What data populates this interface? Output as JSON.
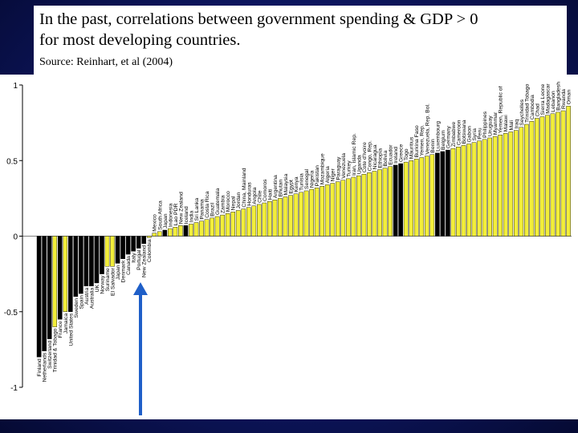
{
  "header": {
    "title_line1": "In the past, correlations between government spending & GDP  > 0",
    "title_line2": "for most developing countries.",
    "source": "Source: Reinhart, et al (2004)"
  },
  "annotation": {
    "arrow_color": "#1f5fc8",
    "points_to": "Colombia"
  },
  "chart_data": {
    "type": "bar",
    "ylim": [
      -1,
      1
    ],
    "yticks": [
      1,
      0.5,
      0,
      -0.5,
      -1
    ],
    "ytick_labels": [
      "1",
      "0.5",
      "0",
      "-0.5",
      "-1"
    ],
    "colors": {
      "industrial": "#000000",
      "developing": "#f2ee3a"
    },
    "bars": [
      {
        "label": "Finland",
        "value": -0.8,
        "group": "industrial"
      },
      {
        "label": "Netherlands",
        "value": -0.76,
        "group": "industrial"
      },
      {
        "label": "Switzerland",
        "value": -0.68,
        "group": "industrial"
      },
      {
        "label": "Trinidad & Tobago",
        "value": -0.6,
        "group": "developing"
      },
      {
        "label": "France",
        "value": -0.55,
        "group": "industrial"
      },
      {
        "label": "Jamaica",
        "value": -0.5,
        "group": "developing"
      },
      {
        "label": "United States",
        "value": -0.5,
        "group": "industrial"
      },
      {
        "label": "Sweden",
        "value": -0.4,
        "group": "industrial"
      },
      {
        "label": "Spain",
        "value": -0.38,
        "group": "industrial"
      },
      {
        "label": "Austria",
        "value": -0.33,
        "group": "industrial"
      },
      {
        "label": "Australia",
        "value": -0.33,
        "group": "industrial"
      },
      {
        "label": "UK",
        "value": -0.31,
        "group": "industrial"
      },
      {
        "label": "Norway",
        "value": -0.25,
        "group": "industrial"
      },
      {
        "label": "Suriname",
        "value": -0.2,
        "group": "developing"
      },
      {
        "label": "El Salvador",
        "value": -0.2,
        "group": "developing"
      },
      {
        "label": "Japan",
        "value": -0.18,
        "group": "industrial"
      },
      {
        "label": "Denmark",
        "value": -0.15,
        "group": "industrial"
      },
      {
        "label": "Canada",
        "value": -0.12,
        "group": "industrial"
      },
      {
        "label": "Italy",
        "value": -0.1,
        "group": "industrial"
      },
      {
        "label": "Portugal",
        "value": -0.08,
        "group": "industrial"
      },
      {
        "label": "New Zealand",
        "value": -0.05,
        "group": "industrial"
      },
      {
        "label": "Colombia",
        "value": -0.01,
        "group": "developing"
      },
      {
        "label": "Mexico",
        "value": 0.02,
        "group": "developing"
      },
      {
        "label": "South Africa",
        "value": 0.03,
        "group": "developing"
      },
      {
        "label": "Japan",
        "value": 0.04,
        "group": "industrial"
      },
      {
        "label": "Indonesia",
        "value": 0.05,
        "group": "developing"
      },
      {
        "label": "Lao PDR",
        "value": 0.06,
        "group": "developing"
      },
      {
        "label": "New Zealand",
        "value": 0.07,
        "group": "developing"
      },
      {
        "label": "Iceland",
        "value": 0.07,
        "group": "industrial"
      },
      {
        "label": "India",
        "value": 0.08,
        "group": "developing"
      },
      {
        "label": "Sri Lanka",
        "value": 0.09,
        "group": "developing"
      },
      {
        "label": "Panama",
        "value": 0.1,
        "group": "developing"
      },
      {
        "label": "Costa Rica",
        "value": 0.11,
        "group": "developing"
      },
      {
        "label": "Brazil",
        "value": 0.12,
        "group": "developing"
      },
      {
        "label": "Guatemala",
        "value": 0.13,
        "group": "developing"
      },
      {
        "label": "Zambia",
        "value": 0.14,
        "group": "developing"
      },
      {
        "label": "Morocco",
        "value": 0.15,
        "group": "developing"
      },
      {
        "label": "Nepal",
        "value": 0.16,
        "group": "developing"
      },
      {
        "label": "Jordan",
        "value": 0.17,
        "group": "developing"
      },
      {
        "label": "China, Mainland",
        "value": 0.18,
        "group": "developing"
      },
      {
        "label": "Honduras",
        "value": 0.19,
        "group": "developing"
      },
      {
        "label": "Angola",
        "value": 0.2,
        "group": "developing"
      },
      {
        "label": "Chile",
        "value": 0.21,
        "group": "developing"
      },
      {
        "label": "Comoros",
        "value": 0.22,
        "group": "developing"
      },
      {
        "label": "Haiti",
        "value": 0.23,
        "group": "developing"
      },
      {
        "label": "Argentina",
        "value": 0.24,
        "group": "developing"
      },
      {
        "label": "Bhutan",
        "value": 0.25,
        "group": "developing"
      },
      {
        "label": "Malaysia",
        "value": 0.26,
        "group": "developing"
      },
      {
        "label": "Egypt",
        "value": 0.27,
        "group": "developing"
      },
      {
        "label": "Kenya",
        "value": 0.28,
        "group": "developing"
      },
      {
        "label": "Tunisia",
        "value": 0.29,
        "group": "developing"
      },
      {
        "label": "Senegal",
        "value": 0.3,
        "group": "developing"
      },
      {
        "label": "Nigeria",
        "value": 0.31,
        "group": "developing"
      },
      {
        "label": "Pakistan",
        "value": 0.32,
        "group": "developing"
      },
      {
        "label": "Mozambique",
        "value": 0.33,
        "group": "developing"
      },
      {
        "label": "Algeria",
        "value": 0.34,
        "group": "developing"
      },
      {
        "label": "Niger",
        "value": 0.35,
        "group": "developing"
      },
      {
        "label": "Paraguay",
        "value": 0.36,
        "group": "developing"
      },
      {
        "label": "Venezuela",
        "value": 0.37,
        "group": "developing"
      },
      {
        "label": "Turkey",
        "value": 0.38,
        "group": "developing"
      },
      {
        "label": "Iran, Islamic Rep.",
        "value": 0.39,
        "group": "developing"
      },
      {
        "label": "Uganda",
        "value": 0.4,
        "group": "developing"
      },
      {
        "label": "Cote d'Ivoire",
        "value": 0.41,
        "group": "developing"
      },
      {
        "label": "Congo, Rep.",
        "value": 0.42,
        "group": "developing"
      },
      {
        "label": "Nicaragua",
        "value": 0.43,
        "group": "developing"
      },
      {
        "label": "Ethiopia",
        "value": 0.44,
        "group": "developing"
      },
      {
        "label": "Bolivia",
        "value": 0.45,
        "group": "developing"
      },
      {
        "label": "Ecuador",
        "value": 0.46,
        "group": "developing"
      },
      {
        "label": "Ireland",
        "value": 0.47,
        "group": "industrial"
      },
      {
        "label": "Greece",
        "value": 0.48,
        "group": "industrial"
      },
      {
        "label": "Togo",
        "value": 0.49,
        "group": "developing"
      },
      {
        "label": "Mauritius",
        "value": 0.5,
        "group": "developing"
      },
      {
        "label": "Burkina Faso",
        "value": 0.51,
        "group": "developing"
      },
      {
        "label": "Yemen, Rep.",
        "value": 0.52,
        "group": "developing"
      },
      {
        "label": "Venezuela, Rep. Bol.",
        "value": 0.53,
        "group": "developing"
      },
      {
        "label": "Benin",
        "value": 0.54,
        "group": "developing"
      },
      {
        "label": "Luxembourg",
        "value": 0.55,
        "group": "industrial"
      },
      {
        "label": "Belgium",
        "value": 0.56,
        "group": "industrial"
      },
      {
        "label": "Germany",
        "value": 0.57,
        "group": "industrial"
      },
      {
        "label": "Zimbabwe",
        "value": 0.58,
        "group": "developing"
      },
      {
        "label": "Cameroon",
        "value": 0.59,
        "group": "developing"
      },
      {
        "label": "Botswana",
        "value": 0.6,
        "group": "developing"
      },
      {
        "label": "Gabon",
        "value": 0.61,
        "group": "developing"
      },
      {
        "label": "Syria",
        "value": 0.62,
        "group": "developing"
      },
      {
        "label": "Peru",
        "value": 0.63,
        "group": "developing"
      },
      {
        "label": "Philippines",
        "value": 0.64,
        "group": "developing"
      },
      {
        "label": "Uruguay",
        "value": 0.65,
        "group": "developing"
      },
      {
        "label": "Myanmar",
        "value": 0.66,
        "group": "developing"
      },
      {
        "label": "Yemen, Republic of",
        "value": 0.67,
        "group": "developing"
      },
      {
        "label": "Malawi",
        "value": 0.68,
        "group": "developing"
      },
      {
        "label": "Mali",
        "value": 0.69,
        "group": "developing"
      },
      {
        "label": "Iraq",
        "value": 0.7,
        "group": "developing"
      },
      {
        "label": "Seychelles",
        "value": 0.72,
        "group": "developing"
      },
      {
        "label": "Trinidad Tobago",
        "value": 0.74,
        "group": "developing"
      },
      {
        "label": "Cambodia",
        "value": 0.76,
        "group": "developing"
      },
      {
        "label": "Chad",
        "value": 0.78,
        "group": "developing"
      },
      {
        "label": "Sierra Leone",
        "value": 0.79,
        "group": "developing"
      },
      {
        "label": "Madagascar",
        "value": 0.8,
        "group": "developing"
      },
      {
        "label": "Lebanon",
        "value": 0.81,
        "group": "developing"
      },
      {
        "label": "Bangladesh",
        "value": 0.82,
        "group": "developing"
      },
      {
        "label": "Rwanda",
        "value": 0.83,
        "group": "developing"
      },
      {
        "label": "Oman",
        "value": 0.86,
        "group": "developing"
      }
    ]
  }
}
